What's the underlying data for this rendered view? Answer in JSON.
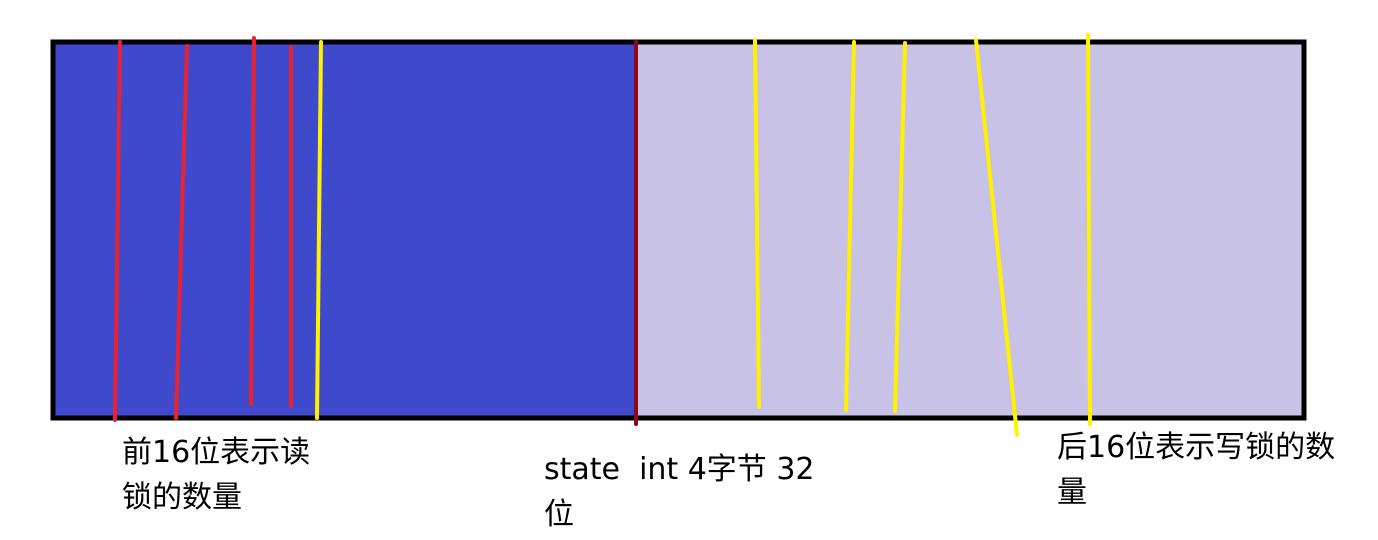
{
  "colors": {
    "high_bits_fill": "#3f49cc",
    "low_bits_fill": "#c8c2e6",
    "outline": "#000000",
    "divider": "#8b0a1e",
    "read_marks": "#e8232f",
    "write_marks": "#fff200"
  },
  "labels": {
    "left": "前16位表示读锁的数量",
    "center": "state  int 4字节 32位",
    "right": "后16位表示写锁的数量"
  }
}
